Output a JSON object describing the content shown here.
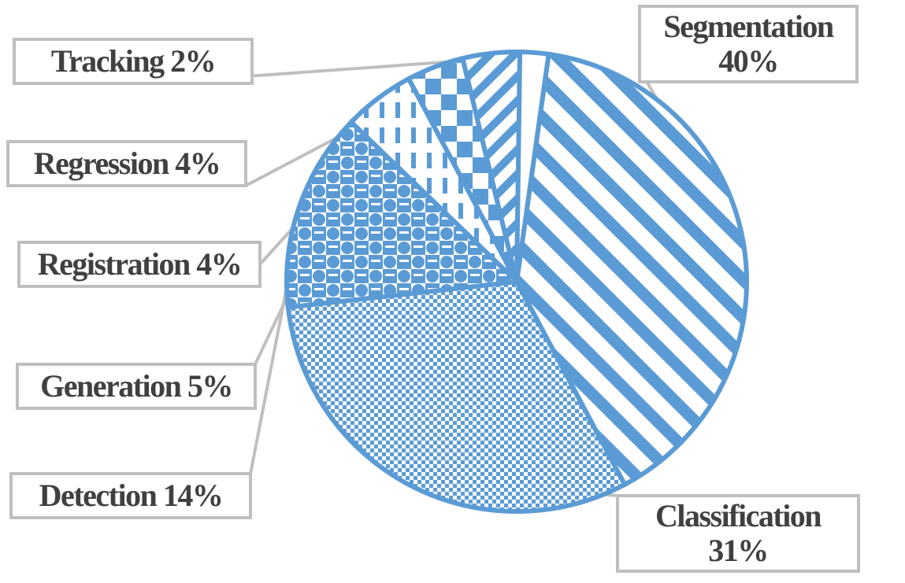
{
  "chart_data": {
    "type": "pie",
    "title": "",
    "slices": [
      {
        "label": "Segmentation",
        "value": 40,
        "value_text": "40%",
        "pattern": "wide-diagonal"
      },
      {
        "label": "Classification",
        "value": 31,
        "value_text": "31%",
        "pattern": "fine-checker"
      },
      {
        "label": "Detection",
        "value": 14,
        "value_text": "14%",
        "pattern": "sphere-checker"
      },
      {
        "label": "Generation",
        "value": 5,
        "value_text": "5%",
        "pattern": "dashed-vertical"
      },
      {
        "label": "Registration",
        "value": 4,
        "value_text": "4%",
        "pattern": "large-checker"
      },
      {
        "label": "Regression",
        "value": 4,
        "value_text": "4%",
        "pattern": "narrow-diagonal"
      },
      {
        "label": "Tracking",
        "value": 2,
        "value_text": "2%",
        "pattern": "solid-white"
      }
    ],
    "colors": {
      "fill": "#5b9bd5",
      "stroke": "#5b9bd5",
      "background": "#ffffff",
      "callout_border": "#bfbfbf",
      "label_text": "#404040"
    },
    "legend": "none",
    "data_labels": "callout-boxes"
  }
}
